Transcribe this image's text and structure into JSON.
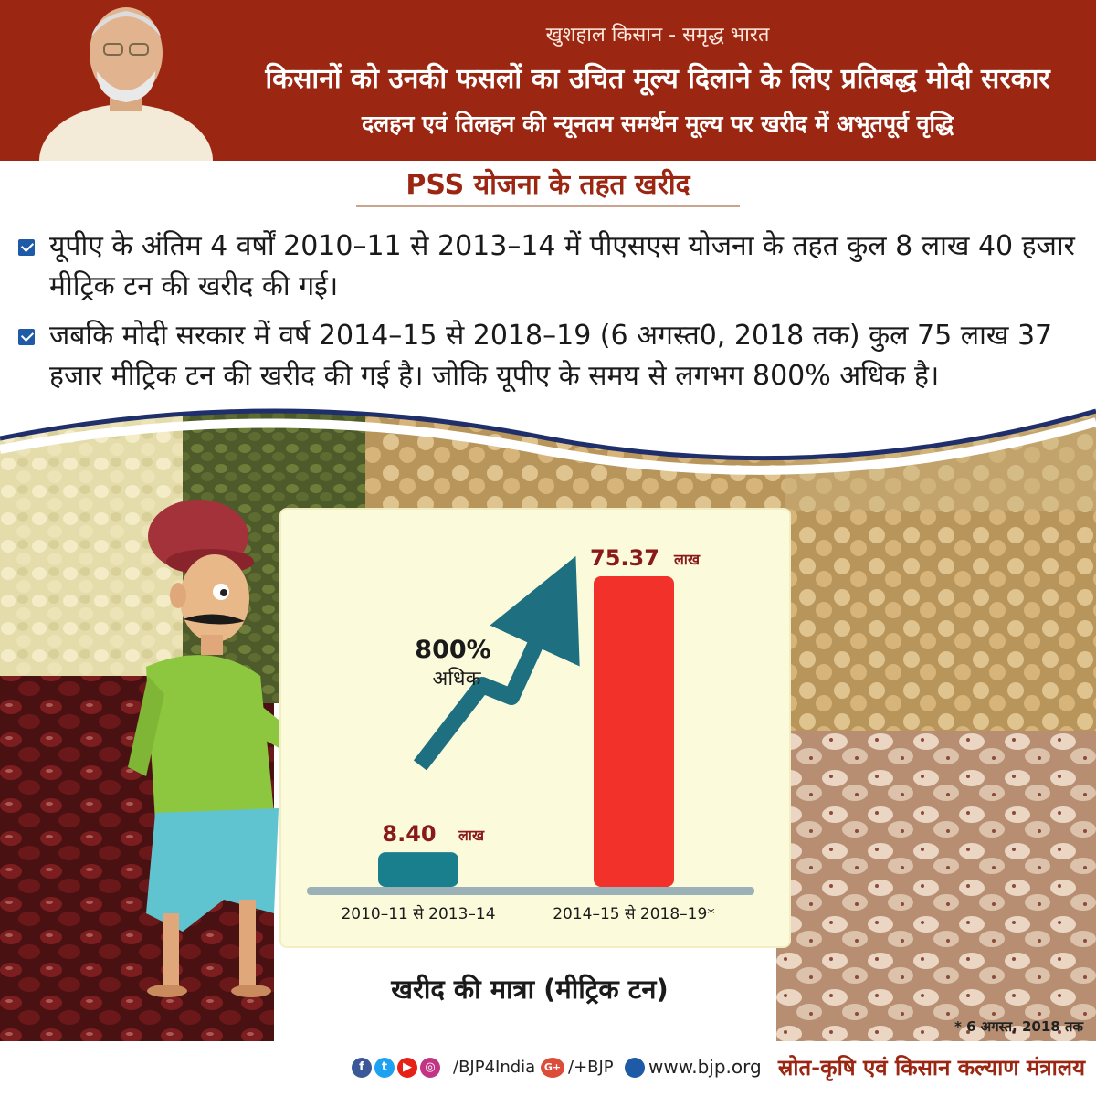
{
  "header": {
    "tagline": "खुशहाल किसान - समृद्ध भारत",
    "headline": "किसानों को उनकी फसलों का उचित मूल्य दिलाने के लिए प्रतिबद्ध मोदी सरकार",
    "subheadline": "दलहन एवं तिलहन की न्यूनतम समर्थन मूल्य पर खरीद में अभूतपूर्व वृद्धि"
  },
  "section_title": "PSS योजना के तहत खरीद",
  "bullets": [
    "यूपीए के अंतिम 4 वर्षों 2010–11 से 2013–14 में पीएसएस योजना के तहत कुल 8 लाख 40 हजार मीट्रिक टन की खरीद की गई।",
    "जबकि मोदी सरकार में वर्ष 2014–15 से 2018–19 (6 अगस्त0, 2018 तक) कुल 75 लाख 37 हजार मीट्रिक टन की खरीद की गई है। जोकि यूपीए के समय से लगभग 800% अधिक है।"
  ],
  "chart_data": {
    "type": "bar",
    "categories": [
      "2010–11 से 2013–14",
      "2014–15 से 2018–19*"
    ],
    "values": [
      8.4,
      75.37
    ],
    "value_labels": [
      "8.40",
      "75.37"
    ],
    "value_unit": "लाख",
    "colors": [
      "#1a7f8c",
      "#f2322a"
    ],
    "annotation_pct": "800%",
    "annotation_word": "अधिक",
    "ylim": [
      0,
      75.37
    ],
    "xlabel": "खरीद की मात्रा (मीट्रिक टन)",
    "ylabel": "",
    "footnote": "* 6 अगस्त, 2018 तक"
  },
  "footer": {
    "social_handle": "/BJP4India",
    "gplus_handle": "/+BJP",
    "website": "www.bjp.org",
    "source": "स्रोत-कृषि एवं किसान कल्याण मंत्रालय"
  },
  "colors": {
    "header_bg": "#9b2712",
    "accent_dark": "#8a1a1a",
    "arrow": "#1e6f80"
  }
}
